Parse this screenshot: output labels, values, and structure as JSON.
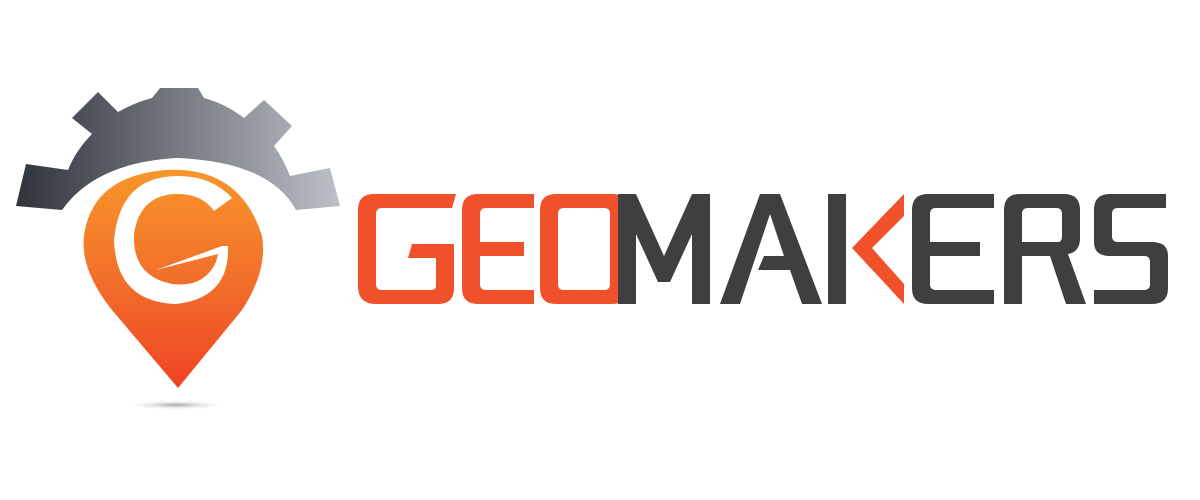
{
  "brand": {
    "name": "GEOMAKERS",
    "colors": {
      "orange": "#f0502a",
      "orange_light": "#f7962a",
      "dark": "#3f3f42",
      "gear_dark": "#2f343b",
      "gear_light": "#b9bcc3"
    },
    "icon": "gear-location-pin-icon"
  }
}
